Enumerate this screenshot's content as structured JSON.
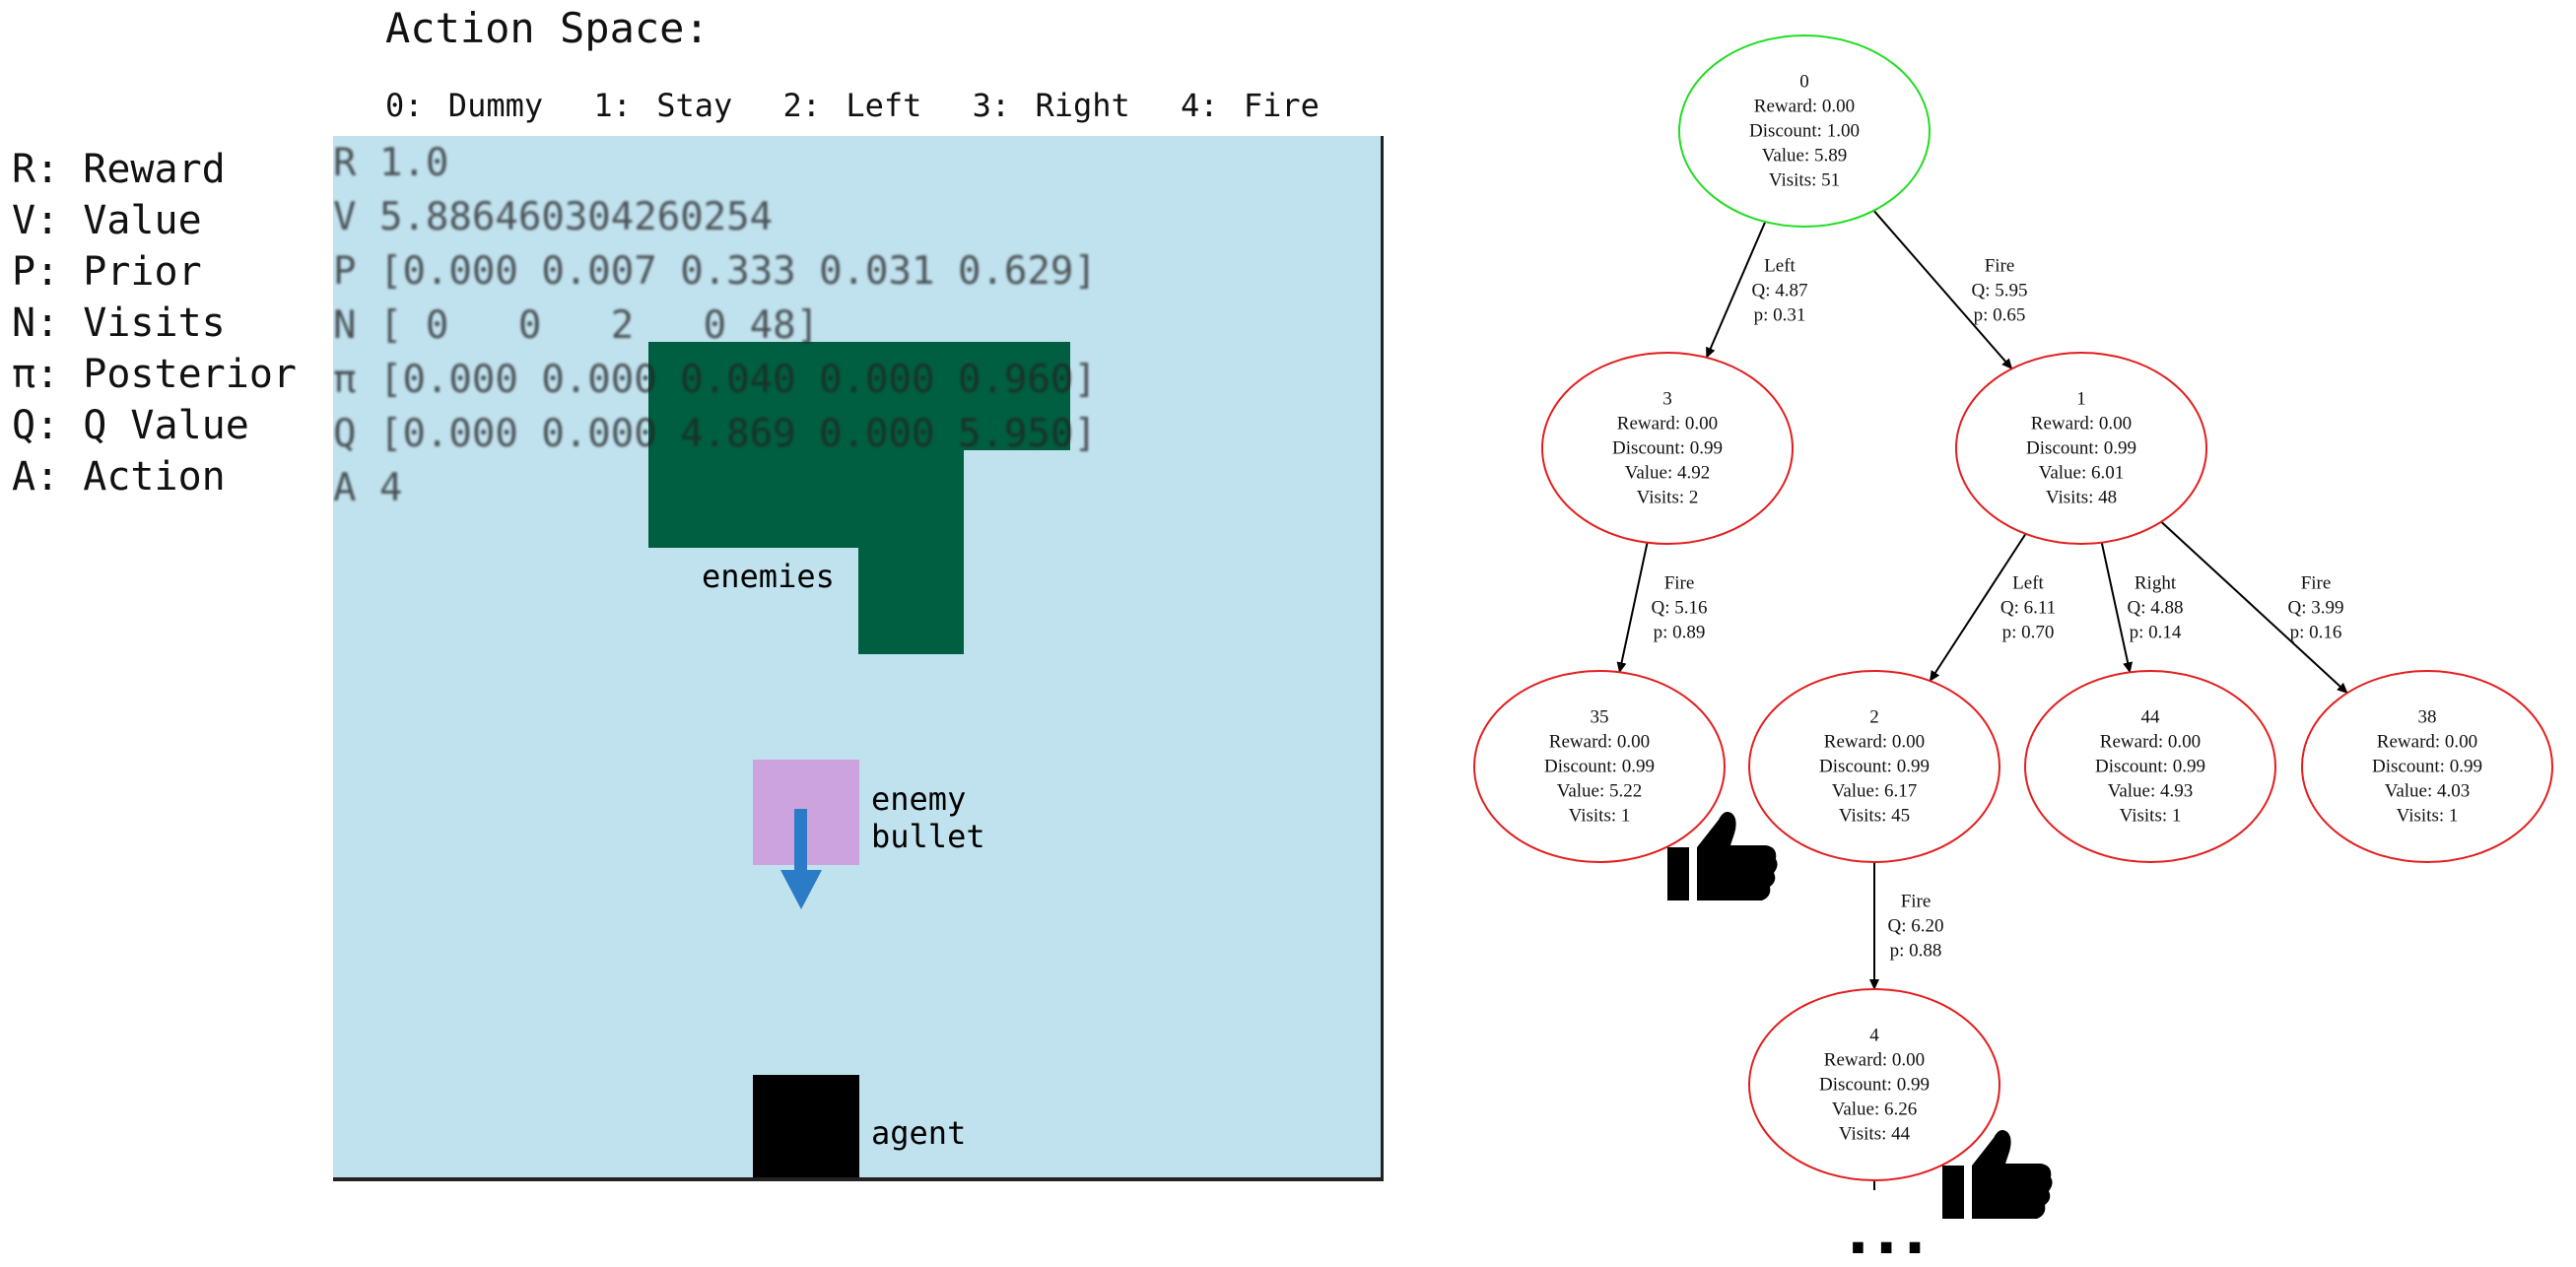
{
  "action_space": {
    "title": "Action Space:",
    "actions": [
      "0: Dummy",
      "1: Stay",
      "2: Left",
      "3: Right",
      "4: Fire"
    ]
  },
  "legend": [
    "R: Reward",
    "V: Value",
    "P: Prior",
    "N: Visits",
    "π: Posterior",
    "Q: Q Value",
    "A: Action"
  ],
  "game": {
    "stats": [
      "R 1.0",
      "V 5.886460304260254",
      "P [0.000 0.007 0.333 0.031 0.629]",
      "N [ 0   0   2   0 48]",
      "π [0.000 0.000 0.040 0.000 0.960]",
      "Q [0.000 0.000 4.869 0.000 5.950]",
      "A 4"
    ],
    "labels": {
      "enemies": "enemies",
      "enemy_bullet": "enemy bullet",
      "agent": "agent"
    },
    "colors": {
      "background": "#c0e1ee",
      "enemies": "#005f40",
      "enemy_bullet": "#cca3dc",
      "bullet_arrow": "#2b7bc7",
      "agent": "#000000"
    }
  },
  "tree": {
    "root_color": "#22dd22",
    "node_color": "#e31e1e",
    "nodes": [
      {
        "id": "n0",
        "lines": [
          "0",
          "Reward: 0.00",
          "Discount: 1.00",
          "Value: 5.89",
          "Visits: 51"
        ],
        "root": true
      },
      {
        "id": "n3",
        "lines": [
          "3",
          "Reward: 0.00",
          "Discount: 0.99",
          "Value: 4.92",
          "Visits: 2"
        ]
      },
      {
        "id": "n1",
        "lines": [
          "1",
          "Reward: 0.00",
          "Discount: 0.99",
          "Value: 6.01",
          "Visits: 48"
        ]
      },
      {
        "id": "n35",
        "lines": [
          "35",
          "Reward: 0.00",
          "Discount: 0.99",
          "Value: 5.22",
          "Visits: 1"
        ],
        "thumb": true
      },
      {
        "id": "n2",
        "lines": [
          "2",
          "Reward: 0.00",
          "Discount: 0.99",
          "Value: 6.17",
          "Visits: 45"
        ]
      },
      {
        "id": "n44",
        "lines": [
          "44",
          "Reward: 0.00",
          "Discount: 0.99",
          "Value: 4.93",
          "Visits: 1"
        ]
      },
      {
        "id": "n38",
        "lines": [
          "38",
          "Reward: 0.00",
          "Discount: 0.99",
          "Value: 4.03",
          "Visits: 1"
        ]
      },
      {
        "id": "n4",
        "lines": [
          "4",
          "Reward: 0.00",
          "Discount: 0.99",
          "Value: 6.26",
          "Visits: 44"
        ],
        "thumb": true
      }
    ],
    "edges": [
      {
        "from": "n0",
        "to": "n3",
        "lines": [
          "Left",
          "Q: 4.87",
          "p: 0.31"
        ]
      },
      {
        "from": "n0",
        "to": "n1",
        "lines": [
          "Fire",
          "Q: 5.95",
          "p: 0.65"
        ]
      },
      {
        "from": "n3",
        "to": "n35",
        "lines": [
          "Fire",
          "Q: 5.16",
          "p: 0.89"
        ]
      },
      {
        "from": "n1",
        "to": "n2",
        "lines": [
          "Left",
          "Q: 6.11",
          "p: 0.70"
        ]
      },
      {
        "from": "n1",
        "to": "n44",
        "lines": [
          "Right",
          "Q: 4.88",
          "p: 0.14"
        ]
      },
      {
        "from": "n1",
        "to": "n38",
        "lines": [
          "Fire",
          "Q: 3.99",
          "p: 0.16"
        ]
      },
      {
        "from": "n2",
        "to": "n4",
        "lines": [
          "Fire",
          "Q: 6.20",
          "p: 0.88"
        ]
      }
    ],
    "continuation": "..."
  }
}
